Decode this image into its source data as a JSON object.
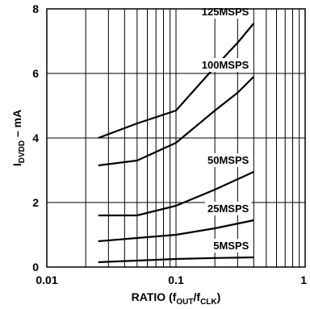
{
  "chart_data": {
    "type": "line",
    "x_scale": "log",
    "y_scale": "linear",
    "xlim": [
      0.01,
      1
    ],
    "ylim": [
      0,
      8
    ],
    "grid": true,
    "x_ticks": [
      "0.01",
      "0.1",
      "1"
    ],
    "y_ticks": [
      "0",
      "2",
      "4",
      "6",
      "8"
    ],
    "xlabel": {
      "main": "RATIO (f",
      "sub1": "OUT",
      "mid": "/f",
      "sub2": "CLK",
      "end": ")"
    },
    "ylabel": {
      "main": "I",
      "sub": "DVDD",
      "end": " – mA"
    },
    "series": [
      {
        "name": "125MSPS",
        "x": [
          0.025,
          0.05,
          0.1,
          0.2,
          0.3,
          0.4
        ],
        "y": [
          4.0,
          4.45,
          4.85,
          6.2,
          6.95,
          7.55
        ]
      },
      {
        "name": "100MSPS",
        "x": [
          0.025,
          0.05,
          0.1,
          0.2,
          0.3,
          0.4
        ],
        "y": [
          3.15,
          3.3,
          3.85,
          4.85,
          5.4,
          5.9
        ]
      },
      {
        "name": "50MSPS",
        "x": [
          0.025,
          0.05,
          0.1,
          0.2,
          0.4
        ],
        "y": [
          1.6,
          1.6,
          1.9,
          2.4,
          2.95
        ]
      },
      {
        "name": "25MSPS",
        "x": [
          0.025,
          0.05,
          0.1,
          0.2,
          0.4
        ],
        "y": [
          0.8,
          0.9,
          1.0,
          1.2,
          1.45
        ]
      },
      {
        "name": "5MSPS",
        "x": [
          0.025,
          0.05,
          0.1,
          0.2,
          0.4
        ],
        "y": [
          0.15,
          0.2,
          0.25,
          0.28,
          0.3
        ]
      }
    ]
  }
}
